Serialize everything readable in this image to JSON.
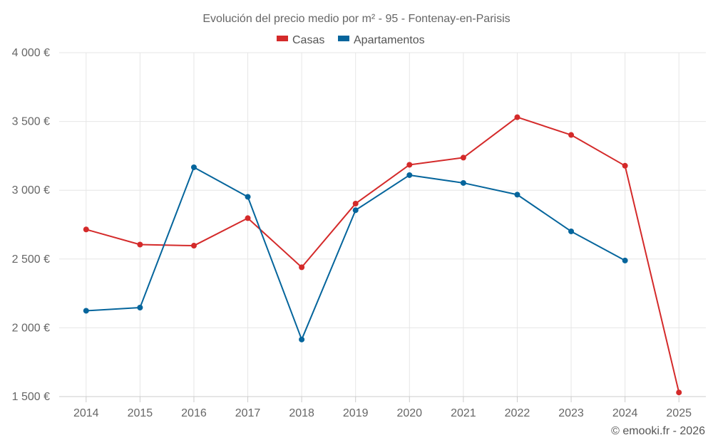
{
  "chart_data": {
    "type": "line",
    "title": "Evolución del precio medio por m² - 95 - Fontenay-en-Parisis",
    "xlabel": "",
    "ylabel": "",
    "categories": [
      "2014",
      "2015",
      "2016",
      "2017",
      "2018",
      "2019",
      "2020",
      "2021",
      "2022",
      "2023",
      "2024",
      "2025"
    ],
    "ylim": [
      1500,
      4000
    ],
    "yticks": [
      1500,
      2000,
      2500,
      3000,
      3500,
      4000
    ],
    "ytick_labels": [
      "1 500 €",
      "2 000 €",
      "2 500 €",
      "3 000 €",
      "3 500 €",
      "4 000 €"
    ],
    "grid": true,
    "legend_position": "top-center",
    "series": [
      {
        "name": "Casas",
        "color": "#d42a2a",
        "values": [
          2715,
          2605,
          2597,
          2797,
          2440,
          2903,
          3185,
          3237,
          3531,
          3402,
          3178,
          1530
        ]
      },
      {
        "name": "Apartamentos",
        "color": "#05659c",
        "values": [
          2124,
          2147,
          3167,
          2952,
          1915,
          2855,
          3110,
          3053,
          2968,
          2701,
          2489,
          null
        ]
      }
    ]
  },
  "credit": "© emooki.fr - 2026"
}
